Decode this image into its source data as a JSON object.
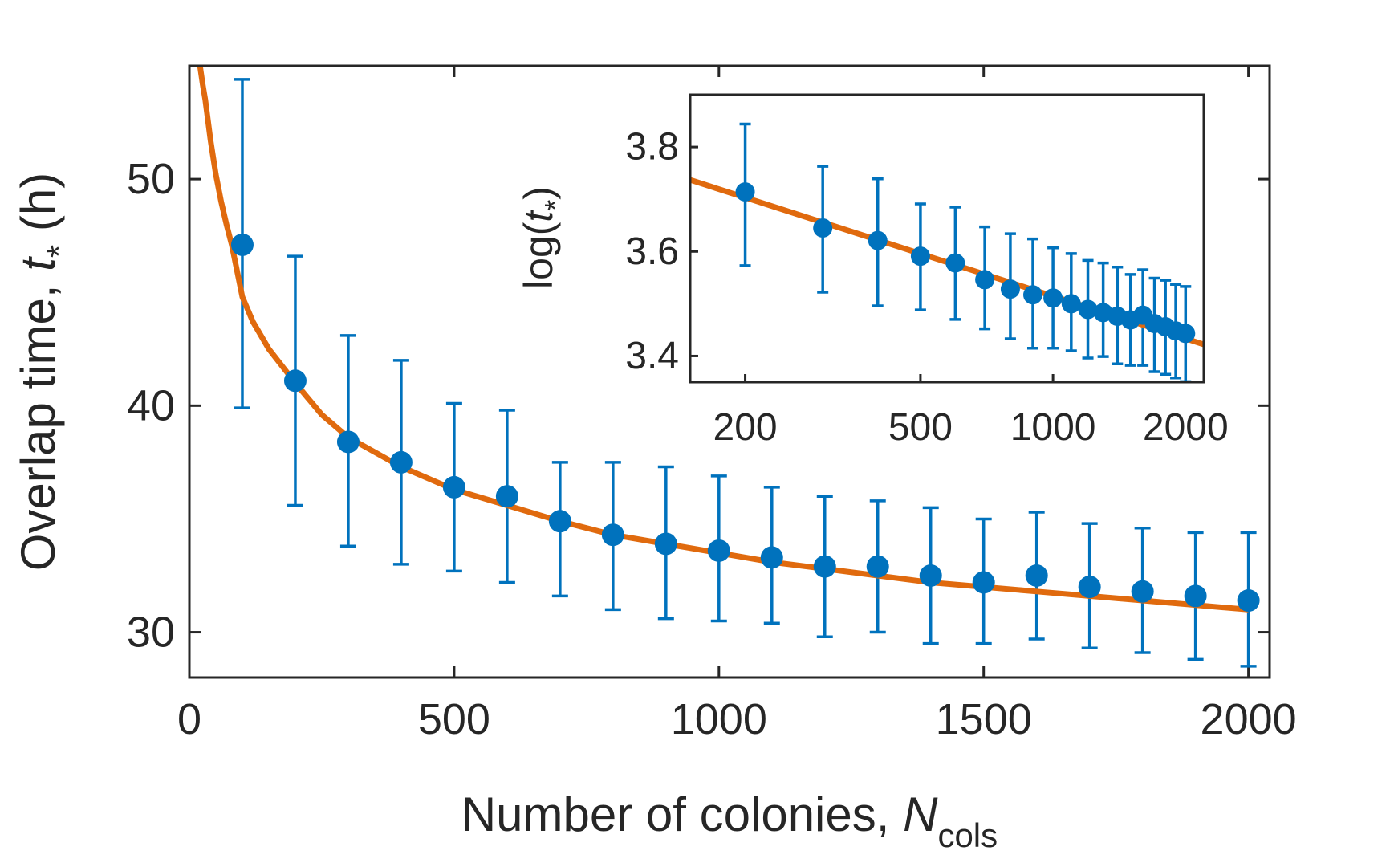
{
  "colors": {
    "data": "#0072BD",
    "fit": "#E06A0E",
    "axes": "#262626"
  },
  "chart_data": [
    {
      "id": "main",
      "type": "scatter",
      "xlabel": {
        "text": "Number of colonies, ",
        "var": "N",
        "sub": "cols"
      },
      "ylabel": {
        "text": "Overlap time, ",
        "var": "t",
        "sub": "*",
        "unit": " (h)"
      },
      "xlim": [
        0,
        2040
      ],
      "ylim": [
        28,
        55
      ],
      "xticks": [
        0,
        500,
        1000,
        1500,
        2000
      ],
      "yticks": [
        30,
        40,
        50
      ],
      "grid": false,
      "series": [
        {
          "kind": "points_with_error",
          "x": [
            100,
            200,
            300,
            400,
            500,
            600,
            700,
            800,
            900,
            1000,
            1100,
            1200,
            1300,
            1400,
            1500,
            1600,
            1700,
            1800,
            1900,
            2000
          ],
          "y": [
            47.1,
            41.1,
            38.4,
            37.5,
            36.4,
            36.0,
            34.9,
            34.3,
            33.9,
            33.6,
            33.3,
            32.9,
            32.9,
            32.5,
            32.2,
            32.5,
            32.0,
            31.8,
            31.6,
            31.4
          ],
          "err_low": [
            39.9,
            35.6,
            33.8,
            33.0,
            32.7,
            32.2,
            31.6,
            31.0,
            30.6,
            30.5,
            30.4,
            29.8,
            30.0,
            29.5,
            29.5,
            29.7,
            29.3,
            29.1,
            28.8,
            28.5
          ],
          "err_high": [
            54.4,
            46.6,
            43.1,
            42.0,
            40.1,
            39.8,
            37.5,
            37.5,
            37.3,
            36.9,
            36.4,
            36.0,
            35.8,
            35.5,
            35.0,
            35.3,
            34.8,
            34.6,
            34.4,
            34.4
          ]
        },
        {
          "kind": "fit_line",
          "x": [
            20,
            25,
            30,
            40,
            50,
            60,
            70,
            80,
            100,
            120,
            150,
            200,
            250,
            300,
            400,
            500,
            600,
            700,
            800,
            900,
            1000,
            1100,
            1200,
            1300,
            1400,
            1500,
            1600,
            1700,
            1800,
            1900,
            2000
          ],
          "y": [
            55.0,
            54.2,
            53.5,
            51.7,
            50.2,
            49.0,
            48.0,
            47.1,
            44.8,
            43.7,
            42.5,
            41.0,
            39.6,
            38.6,
            37.3,
            36.3,
            35.6,
            34.9,
            34.3,
            33.9,
            33.5,
            33.1,
            32.8,
            32.5,
            32.2,
            32.0,
            31.8,
            31.6,
            31.4,
            31.2,
            31.0
          ]
        }
      ]
    },
    {
      "id": "inset",
      "type": "scatter",
      "xscale": "log",
      "ylabel": {
        "text": "log(",
        "var": "t",
        "sub": "*",
        "close": ")"
      },
      "xlim": [
        150,
        2200
      ],
      "ylim": [
        3.35,
        3.9
      ],
      "xticks": [
        200,
        500,
        1000,
        2000
      ],
      "yticks": [
        3.4,
        3.6,
        3.8
      ],
      "grid": false,
      "series": [
        {
          "kind": "points_with_error",
          "x": [
            200,
            300,
            400,
            500,
            600,
            700,
            800,
            900,
            1000,
            1100,
            1200,
            1300,
            1400,
            1500,
            1600,
            1700,
            1800,
            1900,
            2000
          ],
          "y": [
            3.714,
            3.645,
            3.621,
            3.591,
            3.578,
            3.546,
            3.528,
            3.517,
            3.511,
            3.5,
            3.489,
            3.483,
            3.476,
            3.469,
            3.478,
            3.462,
            3.456,
            3.448,
            3.443
          ],
          "err_low": [
            3.573,
            3.522,
            3.496,
            3.488,
            3.47,
            3.452,
            3.433,
            3.415,
            3.415,
            3.41,
            3.396,
            3.399,
            3.385,
            3.382,
            3.382,
            3.37,
            3.365,
            3.358,
            3.351
          ],
          "err_high": [
            3.844,
            3.763,
            3.739,
            3.691,
            3.685,
            3.647,
            3.634,
            3.624,
            3.607,
            3.596,
            3.583,
            3.578,
            3.57,
            3.556,
            3.565,
            3.549,
            3.545,
            3.537,
            3.533
          ]
        },
        {
          "kind": "fit_line",
          "x": [
            150,
            2200
          ],
          "y": [
            3.737,
            3.422
          ]
        }
      ]
    }
  ]
}
